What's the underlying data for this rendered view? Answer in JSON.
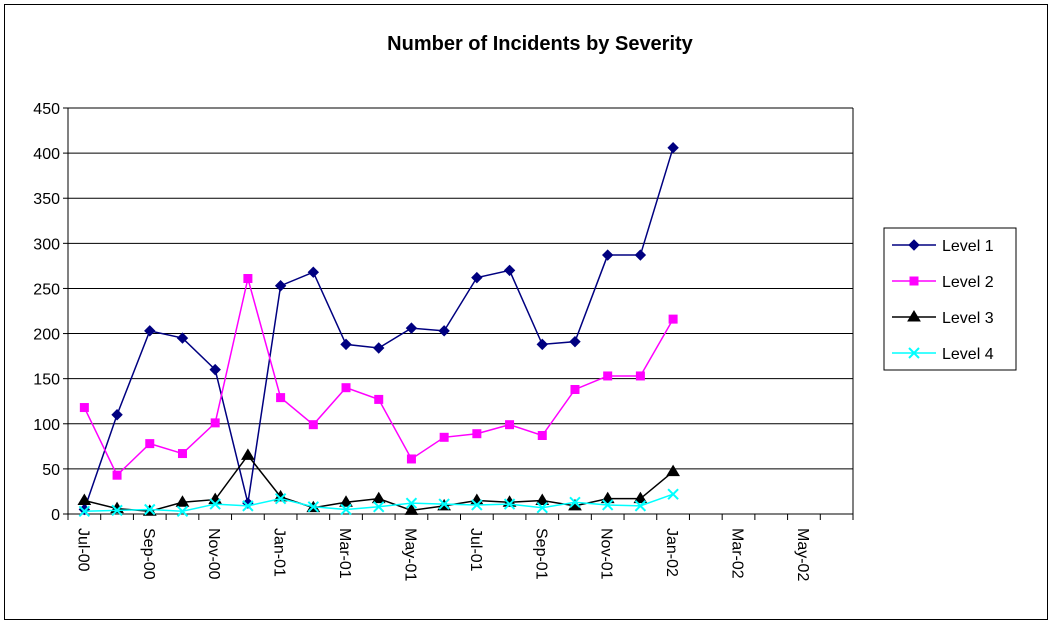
{
  "chart_data": {
    "type": "line",
    "title": "Number of Incidents by Severity",
    "xlabel": "",
    "ylabel": "",
    "ylim": [
      0,
      450
    ],
    "yticks": [
      0,
      50,
      100,
      150,
      200,
      250,
      300,
      350,
      400,
      450
    ],
    "x_tick_labels": [
      "Jul-00",
      "Sep-00",
      "Nov-00",
      "Jan-01",
      "Mar-01",
      "May-01",
      "Jul-01",
      "Sep-01",
      "Nov-01",
      "Jan-02",
      "Mar-02",
      "May-02"
    ],
    "x": [
      "Jul-00",
      "Aug-00",
      "Sep-00",
      "Oct-00",
      "Nov-00",
      "Dec-00",
      "Jan-01",
      "Feb-01",
      "Mar-01",
      "Apr-01",
      "May-01",
      "Jun-01",
      "Jul-01",
      "Aug-01",
      "Sep-01",
      "Oct-01",
      "Nov-01",
      "Dec-01",
      "Jan-02"
    ],
    "x_axis_end": "Jun-02",
    "grid": "horizontal",
    "legend_position": "right",
    "series": [
      {
        "name": "Level 1",
        "color": "#000080",
        "marker": "diamond",
        "values": [
          5,
          110,
          203,
          195,
          160,
          12,
          253,
          268,
          188,
          184,
          206,
          203,
          262,
          270,
          188,
          191,
          287,
          287,
          406
        ]
      },
      {
        "name": "Level 2",
        "color": "#ff00ff",
        "marker": "square",
        "values": [
          118,
          43,
          78,
          67,
          101,
          261,
          129,
          99,
          140,
          127,
          61,
          85,
          89,
          99,
          87,
          138,
          153,
          153,
          216
        ]
      },
      {
        "name": "Level 3",
        "color": "#000000",
        "marker": "triangle",
        "values": [
          15,
          6,
          3,
          13,
          16,
          65,
          19,
          7,
          13,
          17,
          4,
          9,
          15,
          13,
          15,
          9,
          17,
          17,
          47
        ]
      },
      {
        "name": "Level 4",
        "color": "#00ffff",
        "marker": "x",
        "values": [
          3,
          4,
          5,
          3,
          11,
          9,
          17,
          8,
          5,
          8,
          12,
          11,
          10,
          11,
          7,
          13,
          10,
          9,
          22
        ]
      }
    ]
  }
}
